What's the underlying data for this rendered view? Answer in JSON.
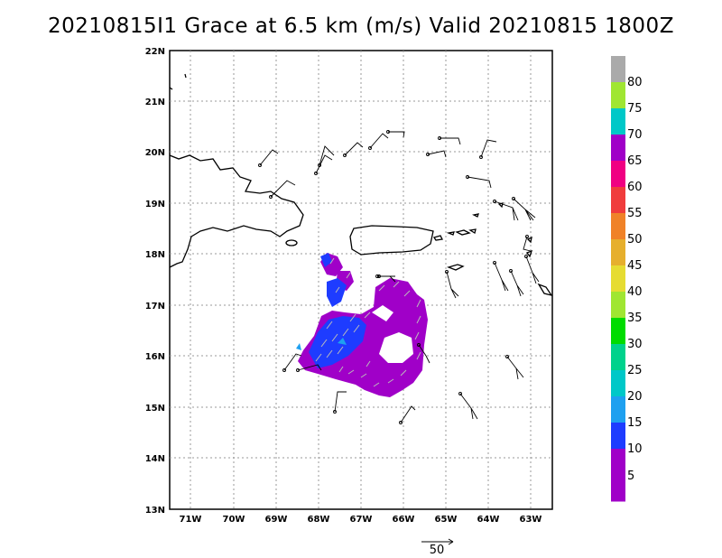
{
  "title": "20210815I1 Grace at 6.5 km (m/s) Valid 20210815 1800Z",
  "lat_ticks": [
    "22N",
    "21N",
    "20N",
    "19N",
    "18N",
    "17N",
    "16N",
    "15N",
    "14N",
    "13N"
  ],
  "lon_ticks": [
    "71W",
    "70W",
    "69W",
    "68W",
    "67W",
    "66W",
    "65W",
    "64W",
    "63W"
  ],
  "colorbar": {
    "labels": [
      "80",
      "75",
      "70",
      "65",
      "60",
      "55",
      "50",
      "45",
      "40",
      "35",
      "30",
      "25",
      "20",
      "15",
      "10",
      "5"
    ],
    "colors": [
      "#aaaaaa",
      "#a0e632",
      "#00c8c8",
      "#a000c8",
      "#f00082",
      "#f03c3c",
      "#f08228",
      "#e6af2d",
      "#e6dc32",
      "#a0e632",
      "#00dc00",
      "#00d28c",
      "#00c8c8",
      "#1ea0f0",
      "#1e3cff",
      "#a000c8",
      "#a000c8"
    ]
  },
  "reference_vector": {
    "label": "50"
  },
  "legend_icons": [
    "wind-barb-icon",
    "observation-station-icon",
    "arrow-icon"
  ]
}
